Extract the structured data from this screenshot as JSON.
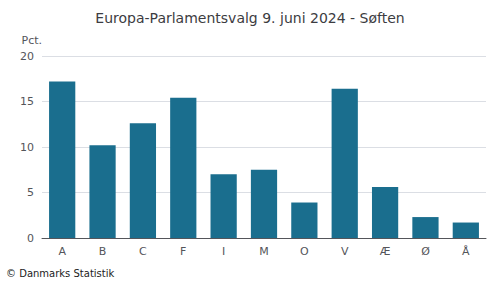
{
  "chart_data": {
    "type": "bar",
    "title": "Europa-Parlamentsvalg 9. juni 2024 - Søften",
    "categories": [
      "A",
      "B",
      "C",
      "F",
      "I",
      "M",
      "O",
      "V",
      "Æ",
      "Ø",
      "Å"
    ],
    "values": [
      17.2,
      10.2,
      12.6,
      15.4,
      7.0,
      7.5,
      3.9,
      16.4,
      5.6,
      2.3,
      1.7
    ],
    "color": "#1a6e8e",
    "ylabel": "Pct.",
    "annotations": [
      "© Danmarks Statistik"
    ],
    "ylim": [
      0,
      20
    ],
    "yticks": [
      0,
      5,
      10,
      15,
      20
    ],
    "grid": true
  }
}
